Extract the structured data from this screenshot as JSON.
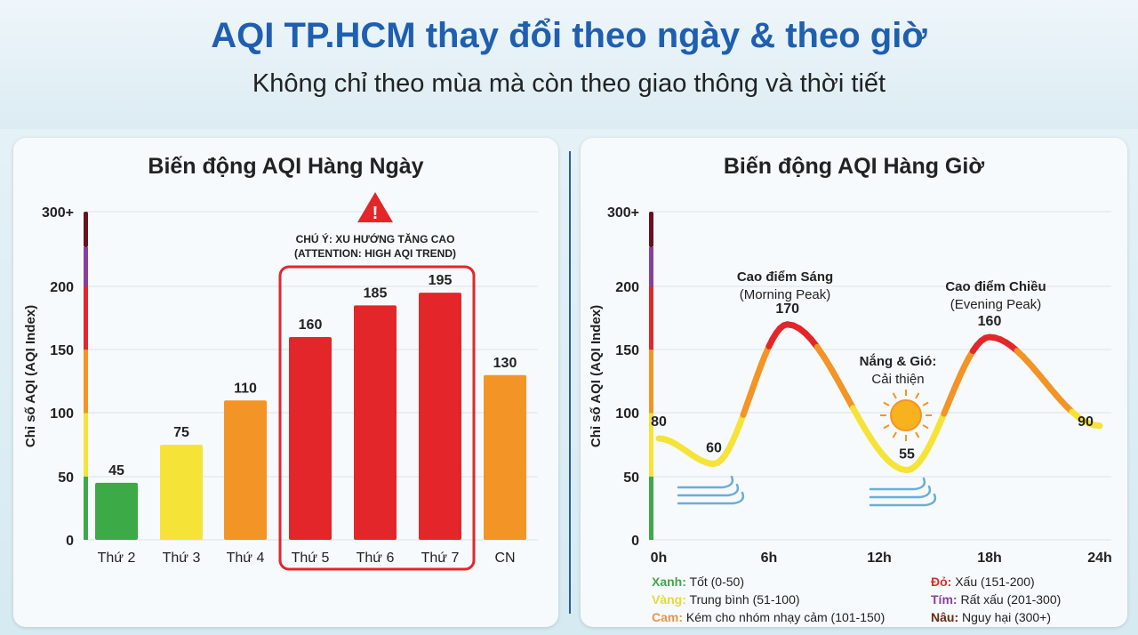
{
  "header": {
    "title": "AQI TP.HCM thay đổi theo ngày & theo giờ",
    "subtitle": "Không chỉ theo mùa mà còn theo giao thông và thời tiết"
  },
  "colors": {
    "green": "#3daa48",
    "yellow": "#f5e337",
    "orange": "#f39426",
    "red": "#e3262a",
    "purple": "#8a3fa0",
    "brown": "#6a1020",
    "title_blue": "#1f5fb0"
  },
  "chart_data": [
    {
      "type": "bar",
      "title": "Biến động AQI Hàng Ngày",
      "ylabel": "Chỉ số AQI (AQI Index)",
      "yticks": [
        "0",
        "50",
        "100",
        "150",
        "200",
        "300+"
      ],
      "categories": [
        "Thứ 2",
        "Thứ 3",
        "Thứ 4",
        "Thứ 5",
        "Thứ 6",
        "Thứ 7",
        "CN"
      ],
      "values": [
        45,
        75,
        110,
        160,
        185,
        195,
        130
      ],
      "annotation": {
        "line1": "CHÚ Ý: XU HƯỚNG TĂNG CAO",
        "line2": "(ATTENTION: HIGH AQI TREND)",
        "icon": "warning-icon",
        "highlight": [
          "Thứ 5",
          "Thứ 6",
          "Thứ 7"
        ]
      }
    },
    {
      "type": "line",
      "title": "Biến động AQI Hàng Giờ",
      "ylabel": "Chỉ số AQI (AQI Index)",
      "yticks": [
        "0",
        "50",
        "100",
        "150",
        "200",
        "300+"
      ],
      "xticks": [
        "0h",
        "6h",
        "12h",
        "18h",
        "24h"
      ],
      "points": [
        {
          "x": 0,
          "y": 80
        },
        {
          "x": 3,
          "y": 60
        },
        {
          "x": 7,
          "y": 170
        },
        {
          "x": 13.5,
          "y": 55
        },
        {
          "x": 18,
          "y": 160
        },
        {
          "x": 24,
          "y": 90
        }
      ],
      "annotations": [
        {
          "title": "Cao điểm Sáng",
          "sub": "(Morning Peak)"
        },
        {
          "title": "Nắng & Gió:",
          "sub": "Cải thiện"
        },
        {
          "title": "Cao điểm Chiều",
          "sub": "(Evening Peak)"
        }
      ],
      "legend": [
        {
          "key": "Xanh:",
          "text": "Tốt (0-50)",
          "color": "#3daa48"
        },
        {
          "key": "Vàng:",
          "text": "Trung bình (51-100)",
          "color": "#e8d93a"
        },
        {
          "key": "Cam:",
          "text": "Kém cho nhóm nhạy cảm (101-150)",
          "color": "#e8954a"
        },
        {
          "key": "Đỏ:",
          "text": "Xấu (151-200)",
          "color": "#d9302a"
        },
        {
          "key": "Tím:",
          "text": "Rất xấu (201-300)",
          "color": "#8a3fa0"
        },
        {
          "key": "Nâu:",
          "text": "Nguy hại (300+)",
          "color": "#6a2a10"
        }
      ]
    }
  ]
}
